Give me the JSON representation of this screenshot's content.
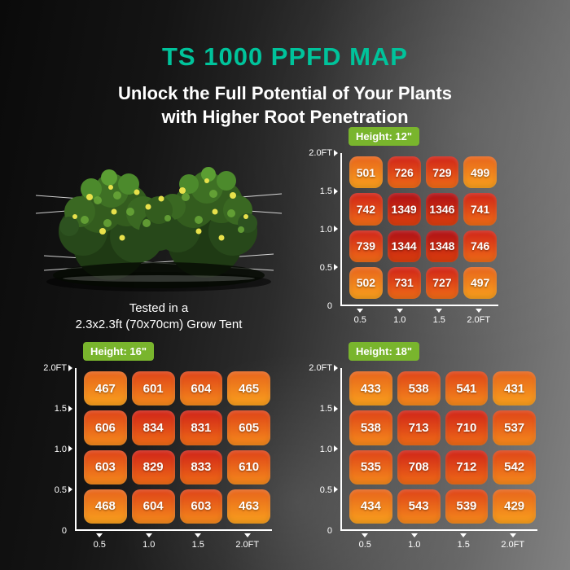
{
  "header": {
    "title": "TS 1000 PPFD MAP",
    "subtitle_line1": "Unlock the Full Potential of Your Plants",
    "subtitle_line2": "with Higher Root Penetration"
  },
  "plant": {
    "caption_line1": "Tested in a",
    "caption_line2": "2.3x2.3ft (70x70cm) Grow Tent"
  },
  "colors": {
    "title_teal": "#00c39b",
    "badge_green": "#79b52d",
    "axis_white": "#ffffff",
    "cell_text": "#ffffff"
  },
  "heat_scale": [
    {
      "max": 520,
      "top": "#e7641c",
      "bottom": "#f9a01d"
    },
    {
      "max": 660,
      "top": "#de4318",
      "bottom": "#f58a1c"
    },
    {
      "max": 900,
      "top": "#d02418",
      "bottom": "#ef6c17"
    },
    {
      "max": 10000,
      "top": "#ae1016",
      "bottom": "#dd3f0e"
    }
  ],
  "chart_data": [
    {
      "type": "heatmap",
      "title": "Height: 12\"",
      "x_ticks": [
        "0.5",
        "1.0",
        "1.5",
        "2.0FT"
      ],
      "y_ticks": [
        "2.0FT",
        "1.5",
        "1.0",
        "0.5",
        "0"
      ],
      "values": [
        [
          501,
          726,
          729,
          499
        ],
        [
          742,
          1349,
          1346,
          741
        ],
        [
          739,
          1344,
          1348,
          746
        ],
        [
          502,
          731,
          727,
          497
        ]
      ]
    },
    {
      "type": "heatmap",
      "title": "Height: 16\"",
      "x_ticks": [
        "0.5",
        "1.0",
        "1.5",
        "2.0FT"
      ],
      "y_ticks": [
        "2.0FT",
        "1.5",
        "1.0",
        "0.5",
        "0"
      ],
      "values": [
        [
          467,
          601,
          604,
          465
        ],
        [
          606,
          834,
          831,
          605
        ],
        [
          603,
          829,
          833,
          610
        ],
        [
          468,
          604,
          603,
          463
        ]
      ]
    },
    {
      "type": "heatmap",
      "title": "Height: 18\"",
      "x_ticks": [
        "0.5",
        "1.0",
        "1.5",
        "2.0FT"
      ],
      "y_ticks": [
        "2.0FT",
        "1.5",
        "1.0",
        "0.5",
        "0"
      ],
      "values": [
        [
          433,
          538,
          541,
          431
        ],
        [
          538,
          713,
          710,
          537
        ],
        [
          535,
          708,
          712,
          542
        ],
        [
          434,
          543,
          539,
          429
        ]
      ]
    }
  ]
}
